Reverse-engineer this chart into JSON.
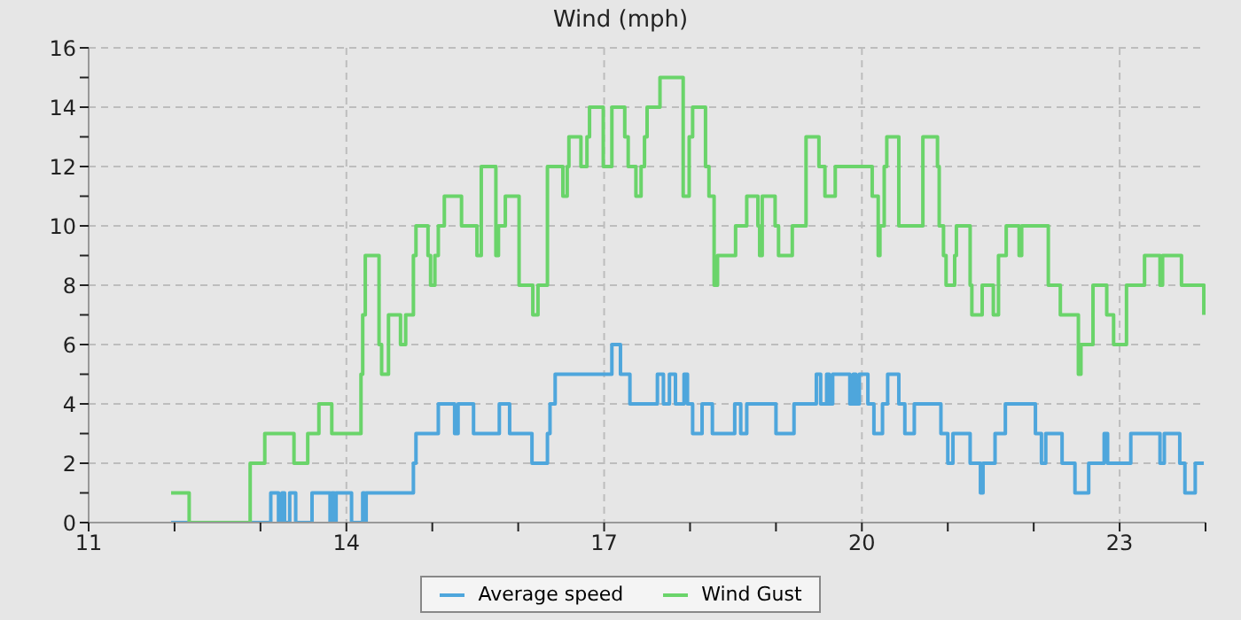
{
  "chart_data": {
    "type": "step",
    "title": "Wind (mph)",
    "xlim": [
      11,
      24
    ],
    "xticks": [
      11,
      {
        "value": 12,
        "label": null
      },
      {
        "value": 13,
        "label": null
      },
      14,
      {
        "value": 15,
        "label": null
      },
      {
        "value": 16,
        "label": null
      },
      17,
      {
        "value": 18,
        "label": null
      },
      {
        "value": 19,
        "label": null
      },
      20,
      {
        "value": 21,
        "label": null
      },
      {
        "value": 22,
        "label": null
      },
      23,
      {
        "value": 24,
        "label": null
      }
    ],
    "ylim": [
      0,
      16
    ],
    "yticks": [
      0,
      {
        "value": 1,
        "label": null
      },
      2,
      {
        "value": 3,
        "label": null
      },
      4,
      {
        "value": 5,
        "label": null
      },
      6,
      {
        "value": 7,
        "label": null
      },
      8,
      {
        "value": 9,
        "label": null
      },
      10,
      {
        "value": 11,
        "label": null
      },
      12,
      {
        "value": 13,
        "label": null
      },
      14,
      {
        "value": 15,
        "label": null
      },
      16
    ],
    "grid": true,
    "legend": "bottom",
    "marker": "none",
    "line_style": "solid",
    "series": [
      {
        "name": "Average speed",
        "color": "#4ea6dc",
        "x": [
          11.96,
          13.12,
          13.21,
          13.25,
          13.28,
          13.34,
          13.41,
          13.6,
          13.81,
          13.83,
          13.86,
          13.88,
          14.06,
          14.19,
          14.21,
          14.23,
          14.78,
          14.81,
          15.07,
          15.26,
          15.3,
          15.48,
          15.78,
          15.9,
          16.16,
          16.34,
          16.37,
          16.43,
          17.09,
          17.19,
          17.3,
          17.62,
          17.69,
          17.76,
          17.83,
          17.93,
          17.97,
          18.03,
          18.14,
          18.26,
          18.52,
          18.59,
          18.66,
          18.74,
          19.0,
          19.21,
          19.47,
          19.52,
          19.59,
          19.62,
          19.66,
          19.86,
          19.9,
          19.93,
          19.97,
          20.07,
          20.14,
          20.24,
          20.3,
          20.43,
          20.5,
          20.61,
          20.92,
          21.0,
          21.06,
          21.26,
          21.38,
          21.41,
          21.55,
          21.67,
          22.02,
          22.09,
          22.14,
          22.33,
          22.48,
          22.64,
          22.82,
          22.86,
          23.13,
          23.47,
          23.52,
          23.7,
          23.76,
          23.88,
          23.98
        ],
        "values": [
          0,
          1,
          0,
          1,
          0,
          1,
          0,
          1,
          0,
          1,
          0,
          1,
          0,
          1,
          0,
          1,
          2,
          3,
          4,
          3,
          4,
          3,
          4,
          3,
          2,
          3,
          4,
          5,
          6,
          5,
          4,
          5,
          4,
          5,
          4,
          5,
          4,
          3,
          4,
          3,
          4,
          3,
          4,
          4,
          3,
          4,
          5,
          4,
          5,
          4,
          5,
          4,
          5,
          4,
          5,
          4,
          3,
          4,
          5,
          4,
          3,
          4,
          3,
          2,
          3,
          2,
          1,
          2,
          3,
          4,
          3,
          2,
          3,
          2,
          1,
          2,
          3,
          2,
          3,
          2,
          3,
          2,
          1,
          2,
          2
        ]
      },
      {
        "name": "Wind Gust",
        "color": "#6ad46a",
        "x": [
          11.96,
          12.17,
          12.88,
          13.05,
          13.39,
          13.55,
          13.68,
          13.83,
          14.17,
          14.19,
          14.22,
          14.38,
          14.41,
          14.45,
          14.49,
          14.63,
          14.69,
          14.78,
          14.81,
          14.95,
          14.98,
          15.03,
          15.07,
          15.14,
          15.34,
          15.52,
          15.57,
          15.74,
          15.77,
          15.85,
          16.01,
          16.17,
          16.23,
          16.34,
          16.52,
          16.57,
          16.59,
          16.73,
          16.8,
          16.83,
          16.99,
          17.09,
          17.24,
          17.28,
          17.37,
          17.43,
          17.47,
          17.5,
          17.65,
          17.92,
          17.99,
          18.03,
          18.18,
          18.22,
          18.28,
          18.32,
          18.53,
          18.66,
          18.79,
          18.81,
          18.84,
          18.99,
          19.03,
          19.19,
          19.35,
          19.5,
          19.57,
          19.69,
          20.12,
          20.16,
          20.19,
          20.21,
          20.26,
          20.29,
          20.43,
          20.71,
          20.88,
          20.9,
          20.95,
          20.98,
          21.08,
          21.1,
          21.26,
          21.28,
          21.4,
          21.53,
          21.59,
          21.68,
          21.83,
          21.86,
          22.17,
          22.31,
          22.52,
          22.55,
          22.69,
          22.85,
          22.93,
          23.08,
          23.29,
          23.47,
          23.5,
          23.69,
          23.72,
          23.98
        ],
        "values": [
          1,
          0,
          2,
          3,
          2,
          3,
          4,
          3,
          5,
          7,
          9,
          6,
          5,
          5,
          7,
          6,
          7,
          9,
          10,
          9,
          8,
          9,
          10,
          11,
          10,
          9,
          12,
          9,
          10,
          11,
          8,
          7,
          8,
          12,
          11,
          12,
          13,
          12,
          13,
          14,
          12,
          14,
          13,
          12,
          11,
          12,
          13,
          14,
          15,
          11,
          13,
          14,
          12,
          11,
          8,
          9,
          10,
          11,
          10,
          9,
          11,
          10,
          9,
          10,
          13,
          12,
          11,
          12,
          11,
          11,
          9,
          10,
          12,
          13,
          10,
          13,
          12,
          10,
          9,
          8,
          9,
          10,
          8,
          7,
          8,
          7,
          9,
          10,
          9,
          10,
          8,
          7,
          5,
          6,
          8,
          7,
          6,
          8,
          9,
          8,
          9,
          9,
          8,
          7
        ]
      }
    ]
  }
}
